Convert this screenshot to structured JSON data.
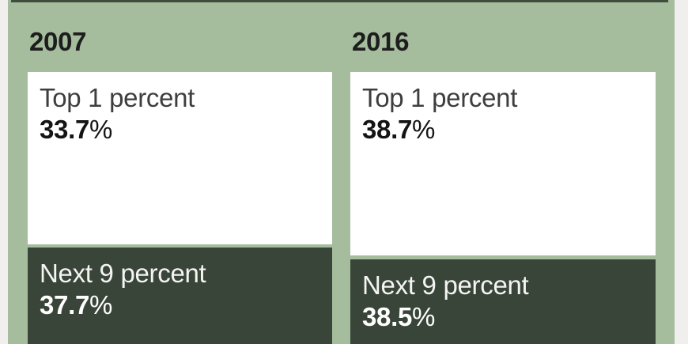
{
  "colors": {
    "canvas_green": "#a5bd9c",
    "page_margin": "#f0efed",
    "segment_light": "#ffffff",
    "segment_dark": "#3a4539",
    "text_dark": "#1d1d1d",
    "text_light": "#ffffff",
    "top_rule": "#3f4c3e"
  },
  "panels": [
    {
      "year": "2007",
      "segments": [
        {
          "label": "Top 1 percent",
          "value": "33.7",
          "suffix": "%"
        },
        {
          "label": "Next 9 percent",
          "value": "37.7",
          "suffix": "%"
        }
      ]
    },
    {
      "year": "2016",
      "segments": [
        {
          "label": "Top 1 percent",
          "value": "38.7",
          "suffix": "%"
        },
        {
          "label": "Next 9 percent",
          "value": "38.5",
          "suffix": "%"
        }
      ]
    }
  ],
  "chart_data": {
    "type": "bar",
    "orientation": "vertical-stacked",
    "categories": [
      "2007",
      "2016"
    ],
    "series": [
      {
        "name": "Top 1 percent",
        "values": [
          33.7,
          38.7
        ],
        "color": "#ffffff"
      },
      {
        "name": "Next 9 percent",
        "values": [
          37.7,
          38.5
        ],
        "color": "#3a4539"
      }
    ],
    "unit": "percent",
    "legend_position": "labels inside segments",
    "grid": false
  }
}
